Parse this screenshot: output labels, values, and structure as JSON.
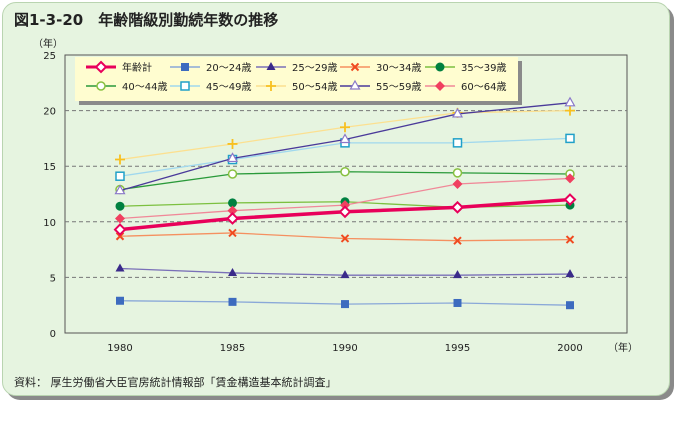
{
  "title": "図1-3-20　年齢階級別勤続年数の推移",
  "source": "資料：  厚生労働省大臣官房統計情報部「賃金構造基本統計調査」",
  "chart_data": {
    "type": "line",
    "title": "年齢階級別勤続年数の推移",
    "ylabel": "（年）",
    "xlabel": "（年）",
    "ylim": [
      0,
      25
    ],
    "yticks": [
      0,
      5,
      10,
      15,
      20,
      25
    ],
    "x": [
      1980,
      1985,
      1990,
      1995,
      2000
    ],
    "legend_position": "top",
    "series": [
      {
        "name": "年齢計",
        "color": "#e8005a",
        "marker": "diamond-open",
        "width": 3.5,
        "values": [
          9.3,
          10.3,
          10.9,
          11.3,
          12.0
        ]
      },
      {
        "name": "20～24歳",
        "color": "#8aa8d8",
        "mcolor": "#3d6bbf",
        "marker": "square",
        "values": [
          2.9,
          2.8,
          2.6,
          2.7,
          2.5
        ]
      },
      {
        "name": "25～29歳",
        "color": "#7a70b8",
        "mcolor": "#3a2a8a",
        "marker": "triangle",
        "values": [
          5.8,
          5.4,
          5.2,
          5.2,
          5.3
        ]
      },
      {
        "name": "30～34歳",
        "color": "#f59060",
        "mcolor": "#f04a20",
        "marker": "x",
        "values": [
          8.7,
          9.0,
          8.5,
          8.3,
          8.4
        ]
      },
      {
        "name": "35～39歳",
        "color": "#7cc040",
        "mcolor": "#008040",
        "marker": "circle",
        "values": [
          11.4,
          11.7,
          11.8,
          11.3,
          11.5
        ]
      },
      {
        "name": "40～44歳",
        "color": "#2a9a3a",
        "mcolor": "#88c040",
        "marker": "circle-open",
        "values": [
          12.9,
          14.3,
          14.5,
          14.4,
          14.3
        ]
      },
      {
        "name": "45～49歳",
        "color": "#a0d8ee",
        "mcolor": "#20a0c8",
        "marker": "square-open",
        "values": [
          14.1,
          15.6,
          17.1,
          17.1,
          17.5
        ]
      },
      {
        "name": "50～54歳",
        "color": "#fce090",
        "mcolor": "#f8c020",
        "marker": "plus",
        "values": [
          15.6,
          17.0,
          18.5,
          19.8,
          20.0
        ]
      },
      {
        "name": "55～59歳",
        "color": "#4a3a9a",
        "mcolor": "#8a78c8",
        "marker": "triangle-open",
        "values": [
          12.8,
          15.7,
          17.4,
          19.7,
          20.7
        ]
      },
      {
        "name": "60～64歳",
        "color": "#f08898",
        "mcolor": "#f04060",
        "marker": "diamond",
        "values": [
          10.3,
          11.0,
          11.5,
          13.4,
          13.9
        ]
      }
    ]
  }
}
